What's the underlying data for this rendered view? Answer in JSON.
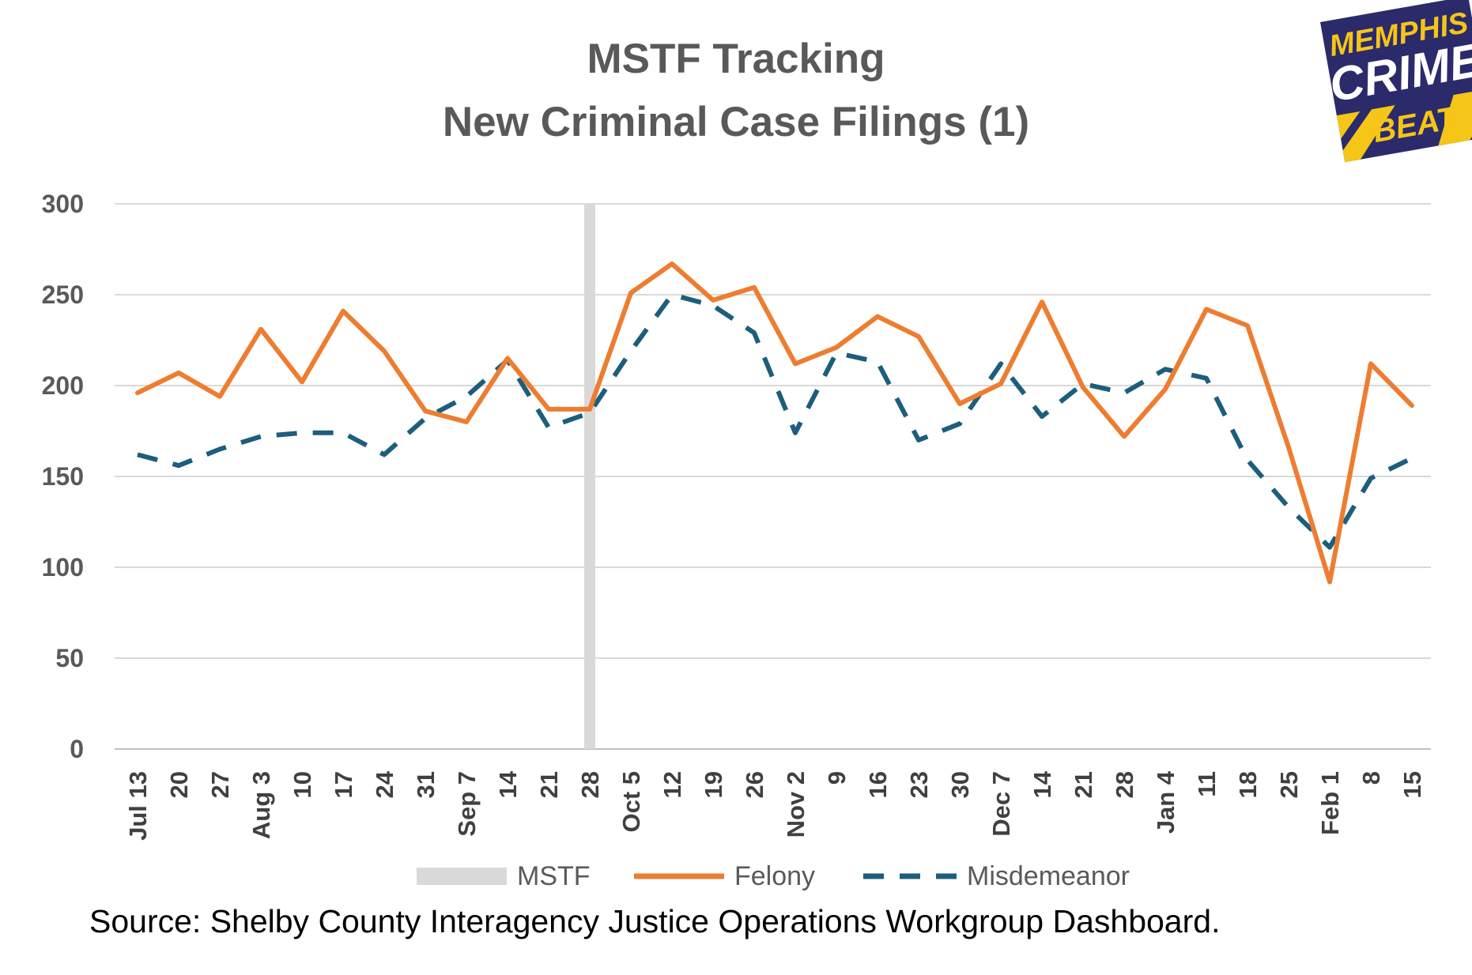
{
  "chart_data": {
    "type": "line",
    "title_line1": "MSTF Tracking",
    "title_line2": "New Criminal Case Filings (1)",
    "categories": [
      "Jul 13",
      "20",
      "27",
      "Aug 3",
      "10",
      "17",
      "24",
      "31",
      "Sep 7",
      "14",
      "21",
      "28",
      "Oct 5",
      "12",
      "19",
      "26",
      "Nov 2",
      "9",
      "16",
      "23",
      "30",
      "Dec 7",
      "14",
      "21",
      "28",
      "Jan 4",
      "11",
      "18",
      "25",
      "Feb 1",
      "8",
      "15"
    ],
    "series": [
      {
        "name": "Felony",
        "color": "#ED7D31",
        "style": "solid",
        "values": [
          196,
          207,
          194,
          231,
          202,
          241,
          219,
          186,
          180,
          215,
          187,
          187,
          251,
          267,
          247,
          254,
          212,
          221,
          238,
          227,
          190,
          201,
          246,
          199,
          172,
          198,
          242,
          233,
          166,
          92,
          212,
          189
        ]
      },
      {
        "name": "Misdemeanor",
        "color": "#1B5E7D",
        "style": "dashed",
        "values": [
          162,
          156,
          165,
          172,
          174,
          174,
          162,
          182,
          194,
          214,
          177,
          185,
          219,
          250,
          244,
          229,
          174,
          218,
          213,
          170,
          179,
          212,
          183,
          201,
          196,
          209,
          204,
          159,
          133,
          111,
          149,
          160
        ]
      }
    ],
    "marker": {
      "name": "MSTF",
      "category": "28",
      "color": "#D9D9D9"
    },
    "y_ticks": [
      "0",
      "50",
      "100",
      "150",
      "200",
      "250",
      "300"
    ],
    "ylim": [
      0,
      300
    ],
    "legend": [
      "MSTF",
      "Felony",
      "Misdemeanor"
    ],
    "legend_position": "bottom",
    "grid": true
  },
  "logo": {
    "line1": "MEMPHIS",
    "line2": "CRIME",
    "line3": "BEAT"
  },
  "source_text": "Source:  Shelby County Interagency Justice Operations Workgroup Dashboard."
}
